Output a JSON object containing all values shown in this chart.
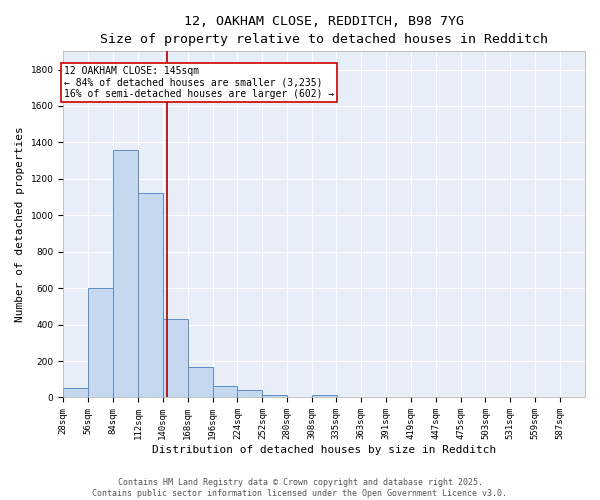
{
  "title_line1": "12, OAKHAM CLOSE, REDDITCH, B98 7YG",
  "title_line2": "Size of property relative to detached houses in Redditch",
  "xlabel": "Distribution of detached houses by size in Redditch",
  "ylabel": "Number of detached properties",
  "bar_color": "#c5d8f0",
  "bar_edge_color": "#5b8ec4",
  "background_color": "#e8eef8",
  "grid_color": "#ffffff",
  "annotation_line_color": "#aa0000",
  "annotation_box_color": "#cc0000",
  "annotation_text": "12 OAKHAM CLOSE: 145sqm\n← 84% of detached houses are smaller (3,235)\n16% of semi-detached houses are larger (602) →",
  "property_size_sqm": 145,
  "bin_edges": [
    28,
    56,
    84,
    112,
    140,
    168,
    196,
    224,
    252,
    280,
    308,
    335,
    363,
    391,
    419,
    447,
    475,
    503,
    531,
    559,
    587,
    615
  ],
  "counts": [
    50,
    600,
    1360,
    1120,
    430,
    170,
    65,
    40,
    15,
    0,
    15,
    0,
    0,
    0,
    0,
    0,
    0,
    0,
    0,
    0,
    0
  ],
  "tick_labels": [
    "28sqm",
    "56sqm",
    "84sqm",
    "112sqm",
    "140sqm",
    "168sqm",
    "196sqm",
    "224sqm",
    "252sqm",
    "280sqm",
    "308sqm",
    "335sqm",
    "363sqm",
    "391sqm",
    "419sqm",
    "447sqm",
    "475sqm",
    "503sqm",
    "531sqm",
    "559sqm",
    "587sqm"
  ],
  "ylim": [
    0,
    1900
  ],
  "yticks": [
    0,
    200,
    400,
    600,
    800,
    1000,
    1200,
    1400,
    1600,
    1800
  ],
  "footnote": "Contains HM Land Registry data © Crown copyright and database right 2025.\nContains public sector information licensed under the Open Government Licence v3.0.",
  "title_fontsize": 9.5,
  "subtitle_fontsize": 8.5,
  "axis_label_fontsize": 8,
  "tick_fontsize": 6.5,
  "annotation_fontsize": 7,
  "footnote_fontsize": 6
}
